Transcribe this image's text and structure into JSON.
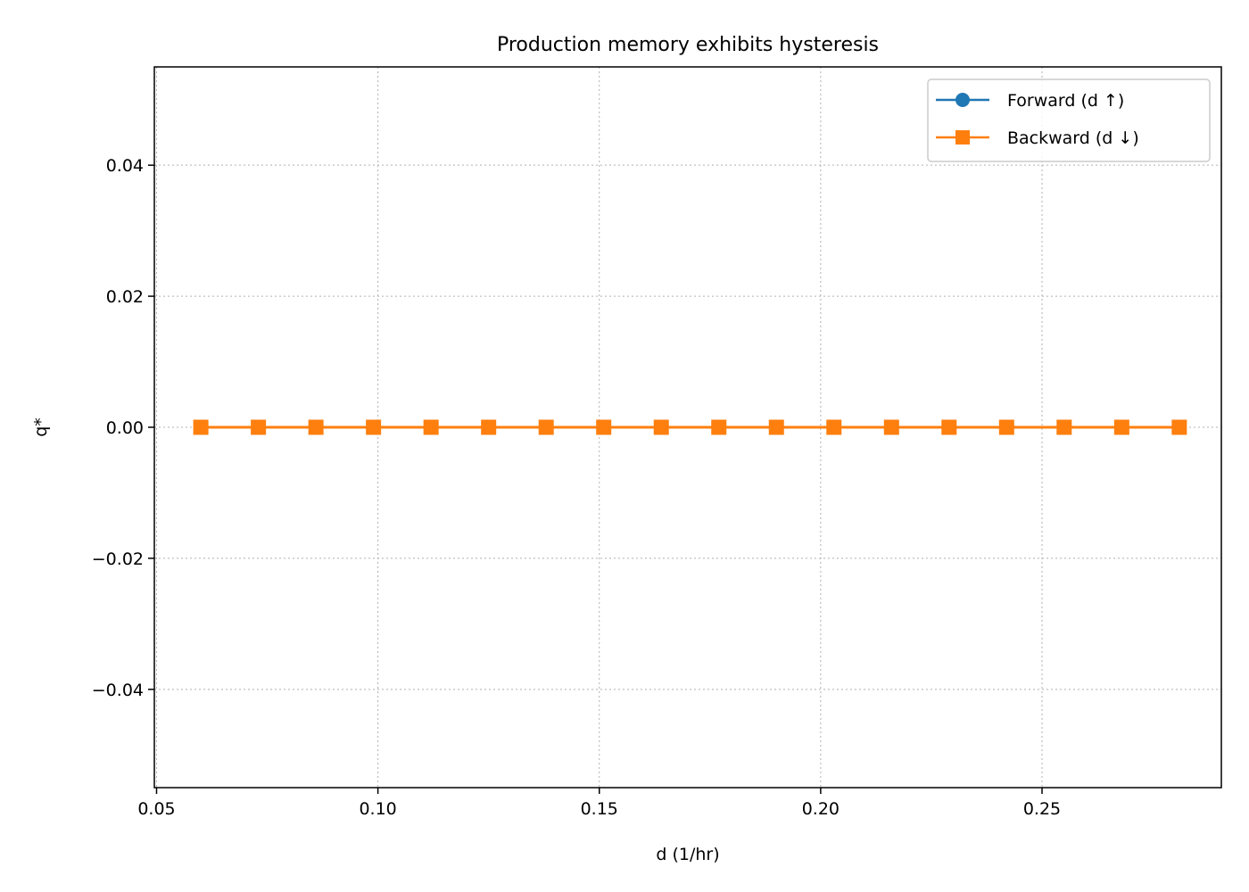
{
  "chart_data": {
    "type": "line",
    "title": "Production memory exhibits hysteresis",
    "xlabel": "d (1/hr)",
    "ylabel": "q*",
    "xlim": [
      0.0495,
      0.2905
    ],
    "ylim": [
      -0.055,
      0.055
    ],
    "xticks": [
      0.05,
      0.1,
      0.15,
      0.2,
      0.25
    ],
    "xtick_labels": [
      "0.05",
      "0.10",
      "0.15",
      "0.20",
      "0.25"
    ],
    "yticks": [
      0.04,
      0.02,
      0.0,
      -0.02,
      -0.04
    ],
    "ytick_labels": [
      "0.04",
      "0.02",
      "0.00",
      "−0.02",
      "−0.04"
    ],
    "grid": true,
    "legend_position": "top-right",
    "series": [
      {
        "name": "Forward (d ↑)",
        "color": "#1f77b4",
        "marker": "circle",
        "x": [
          0.06,
          0.073,
          0.086,
          0.099,
          0.112,
          0.125,
          0.138,
          0.151,
          0.164,
          0.177,
          0.19,
          0.203,
          0.216,
          0.229,
          0.242,
          0.255,
          0.268,
          0.281
        ],
        "y": [
          0,
          0,
          0,
          0,
          0,
          0,
          0,
          0,
          0,
          0,
          0,
          0,
          0,
          0,
          0,
          0,
          0,
          0
        ]
      },
      {
        "name": "Backward (d ↓)",
        "color": "#ff7f0e",
        "marker": "square",
        "x": [
          0.281,
          0.268,
          0.255,
          0.242,
          0.229,
          0.216,
          0.203,
          0.19,
          0.177,
          0.164,
          0.151,
          0.138,
          0.125,
          0.112,
          0.099,
          0.086,
          0.073,
          0.06
        ],
        "y": [
          0,
          0,
          0,
          0,
          0,
          0,
          0,
          0,
          0,
          0,
          0,
          0,
          0,
          0,
          0,
          0,
          0,
          0
        ]
      }
    ]
  }
}
